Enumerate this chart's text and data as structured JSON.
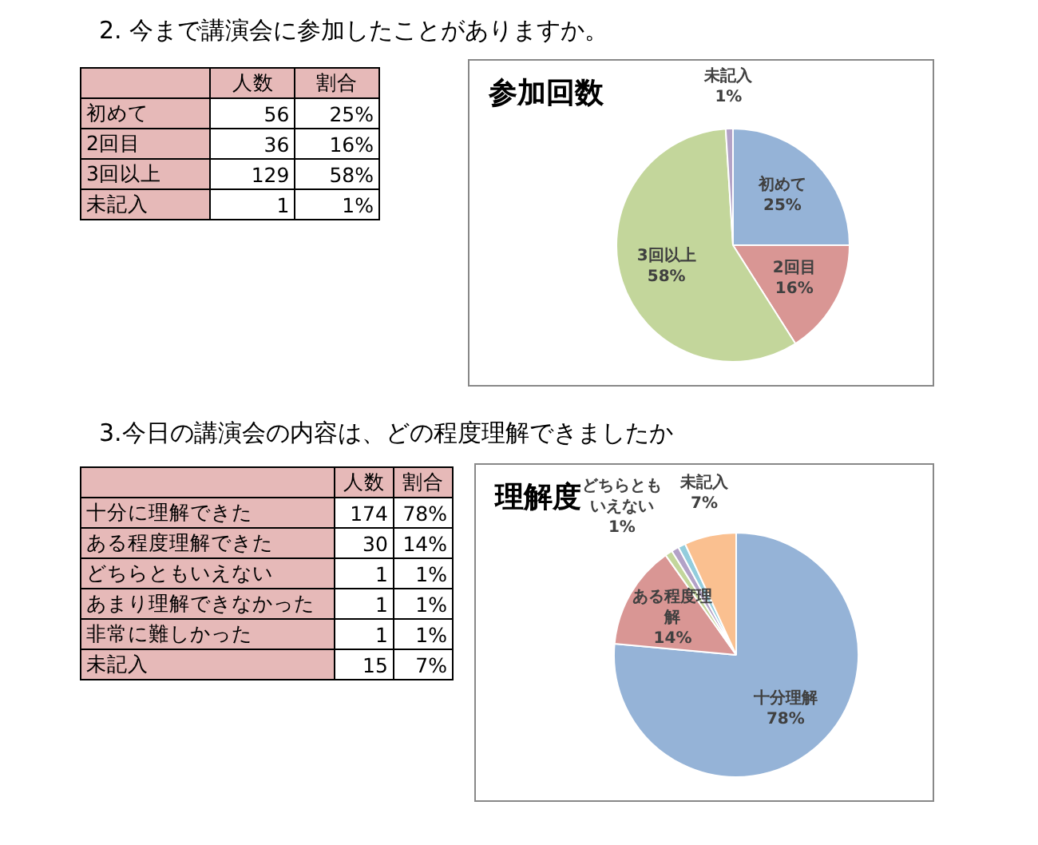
{
  "chart_data": [
    {
      "type": "other",
      "title": "2. 今まで講演会に参加したことがありますか。",
      "data_labels": true,
      "categories": [
        "初めて",
        "2回目",
        "3回以上",
        "未記入"
      ],
      "series": [
        {
          "name": "人数",
          "values": [
            56,
            36,
            129,
            1
          ]
        },
        {
          "name": "割合",
          "values": [
            25,
            16,
            58,
            1
          ],
          "value_labels": [
            "25%",
            "16%",
            "58%",
            "1%"
          ]
        }
      ]
    },
    {
      "type": "pie",
      "title": "参加回数",
      "categories": [
        "初めて",
        "2回目",
        "3回以上",
        "未記入"
      ],
      "values": [
        25,
        16,
        58,
        1
      ],
      "colors": [
        "#95b3d7",
        "#d99694",
        "#c3d69b",
        "#b3a2c7"
      ],
      "value_labels": [
        "25%",
        "16%",
        "58%",
        "1%"
      ],
      "legend": false
    },
    {
      "type": "other",
      "title": "3.今日の講演会の内容は、どの程度理解できましたか",
      "data_labels": true,
      "categories": [
        "十分に理解できた",
        "ある程度理解できた",
        "どちらともいえない",
        "あまり理解できなかった",
        "非常に難しかった",
        "未記入"
      ],
      "series": [
        {
          "name": "人数",
          "values": [
            174,
            30,
            1,
            1,
            1,
            15
          ]
        },
        {
          "name": "割合",
          "values": [
            78,
            14,
            1,
            1,
            1,
            7
          ],
          "value_labels": [
            "78%",
            "14%",
            "1%",
            "1%",
            "1%",
            "7%"
          ]
        }
      ]
    },
    {
      "type": "pie",
      "title": "理解度",
      "categories": [
        "十分理解",
        "ある程度理解",
        "どちらともいえない",
        null,
        null,
        "未記入"
      ],
      "values": [
        78,
        14,
        1,
        1,
        1,
        7
      ],
      "colors": [
        "#95b3d7",
        "#d99694",
        "#c3d69b",
        "#b3a2c7",
        "#93cddd",
        "#fac090"
      ],
      "value_labels": [
        "78%",
        "14%",
        "1%",
        null,
        null,
        "7%"
      ],
      "legend": false
    }
  ]
}
